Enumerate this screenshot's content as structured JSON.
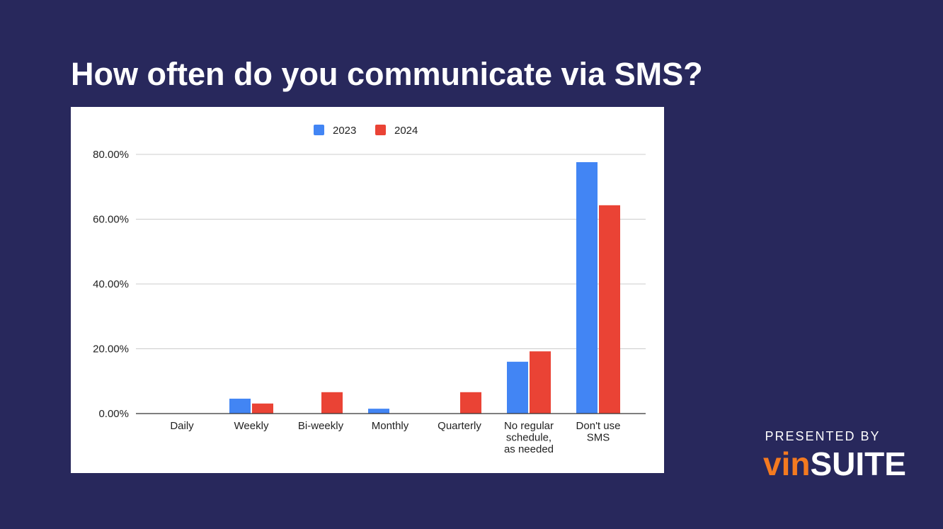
{
  "chart_data": {
    "type": "bar",
    "title": "How often do you communicate via SMS?",
    "categories": [
      "Daily",
      "Weekly",
      "Bi-weekly",
      "Monthly",
      "Quarterly",
      "No regular schedule, as needed",
      "Don't use SMS"
    ],
    "series": [
      {
        "name": "2023",
        "color": "#4285f4",
        "values": [
          0,
          4.6,
          0,
          1.5,
          0,
          16.0,
          77.6
        ]
      },
      {
        "name": "2024",
        "color": "#ea4335",
        "values": [
          0,
          3.1,
          6.6,
          0,
          6.6,
          19.2,
          64.3
        ]
      }
    ],
    "ylim": [
      0,
      80
    ],
    "yticks": [
      {
        "value": 0,
        "label": "0.00%"
      },
      {
        "value": 20,
        "label": "20.00%"
      },
      {
        "value": 40,
        "label": "40.00%"
      },
      {
        "value": 60,
        "label": "60.00%"
      },
      {
        "value": 80,
        "label": "80.00%"
      }
    ],
    "grid": true,
    "legend": "top"
  },
  "branding": {
    "caption": "PRESENTED BY",
    "logo_prefix": "vin",
    "logo_suffix": "SUITE"
  }
}
